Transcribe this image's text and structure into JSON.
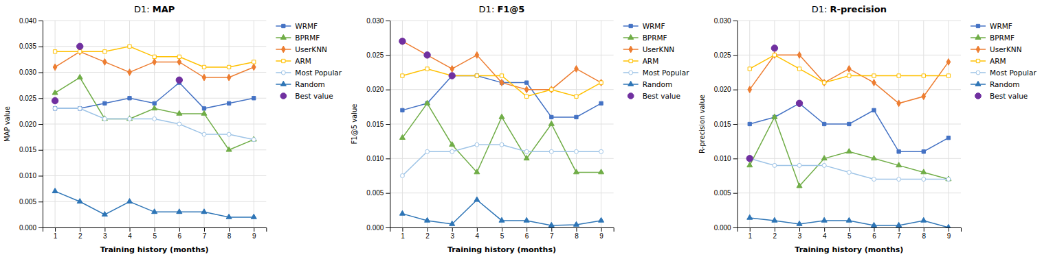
{
  "chart_data": [
    {
      "type": "line",
      "title": "D1: MAP",
      "x_label": "Training history (months)",
      "y_label": "MAP value",
      "x": [
        1,
        2,
        3,
        4,
        5,
        6,
        7,
        8,
        9
      ],
      "xlim": [
        0.5,
        9.5
      ],
      "xticks": [
        1,
        2,
        3,
        4,
        5,
        6,
        7,
        8,
        9
      ],
      "ylim": [
        0,
        0.04
      ],
      "yticks": [
        {
          "value": 0,
          "label": "0.000"
        },
        0.005,
        {
          "value": 0.01,
          "label": "0.010"
        },
        0.015,
        {
          "value": 0.02,
          "label": "0.020"
        },
        0.025,
        {
          "value": 0.03,
          "label": "0.030"
        },
        0.035,
        {
          "value": 0.04,
          "label": "0.040"
        }
      ],
      "grid": true,
      "legend": "right",
      "series": [
        {
          "name": "WRMF",
          "color": "#4472C4",
          "marker": "square",
          "values": [
            0.023,
            0.023,
            0.024,
            0.025,
            0.024,
            0.028,
            0.023,
            0.024,
            0.025
          ]
        },
        {
          "name": "BPRMF",
          "color": "#70AD47",
          "marker": "triangle",
          "values": [
            0.026,
            0.029,
            0.021,
            0.021,
            0.023,
            0.022,
            0.022,
            0.015,
            0.017
          ]
        },
        {
          "name": "UserKNN",
          "color": "#ED7D31",
          "marker": "diamond",
          "values": [
            0.031,
            0.034,
            0.032,
            0.03,
            0.032,
            0.032,
            0.029,
            0.029,
            0.031
          ]
        },
        {
          "name": "ARM",
          "color": "#FFC000",
          "marker": "square-open",
          "values": [
            0.034,
            0.034,
            0.034,
            0.035,
            0.033,
            0.033,
            0.031,
            0.031,
            0.032
          ]
        },
        {
          "name": "Most Popular",
          "color": "#9DC3E6",
          "marker": "circle-open",
          "values": [
            0.023,
            0.023,
            0.021,
            0.021,
            0.021,
            0.02,
            0.018,
            0.018,
            0.017
          ]
        },
        {
          "name": "Random",
          "color": "#2E75B6",
          "marker": "triangle",
          "values": [
            0.007,
            0.005,
            0.0025,
            0.005,
            0.003,
            0.003,
            0.003,
            0.002,
            0.002
          ]
        },
        {
          "name": "Best value",
          "type": "scatter",
          "color": "#7030A0",
          "marker": "circle",
          "x": [
            1,
            2,
            6
          ],
          "values": [
            0.0245,
            0.035,
            0.0285
          ]
        }
      ]
    },
    {
      "type": "line",
      "title": "D1: F1@5",
      "x_label": "Training history (months)",
      "y_label": "F1@5 value",
      "x": [
        1,
        2,
        3,
        4,
        5,
        6,
        7,
        8,
        9
      ],
      "xlim": [
        0.5,
        9.5
      ],
      "xticks": [
        1,
        2,
        3,
        4,
        5,
        6,
        7,
        8,
        9
      ],
      "ylim": [
        0,
        0.03
      ],
      "yticks": [
        {
          "value": 0,
          "label": "0.000"
        },
        0.005,
        {
          "value": 0.01,
          "label": "0.010"
        },
        0.015,
        {
          "value": 0.02,
          "label": "0.020"
        },
        0.025,
        {
          "value": 0.03,
          "label": "0.030"
        }
      ],
      "grid": true,
      "legend": "right",
      "series": [
        {
          "name": "WRMF",
          "color": "#4472C4",
          "marker": "square",
          "values": [
            0.017,
            0.018,
            0.022,
            0.022,
            0.021,
            0.021,
            0.016,
            0.016,
            0.018
          ]
        },
        {
          "name": "BPRMF",
          "color": "#70AD47",
          "marker": "triangle",
          "values": [
            0.013,
            0.018,
            0.012,
            0.008,
            0.016,
            0.01,
            0.015,
            0.008,
            0.008
          ]
        },
        {
          "name": "UserKNN",
          "color": "#ED7D31",
          "marker": "diamond",
          "values": [
            0.027,
            0.025,
            0.023,
            0.025,
            0.021,
            0.02,
            0.02,
            0.023,
            0.021
          ]
        },
        {
          "name": "ARM",
          "color": "#FFC000",
          "marker": "square-open",
          "values": [
            0.022,
            0.023,
            0.022,
            0.022,
            0.022,
            0.019,
            0.02,
            0.019,
            0.021
          ]
        },
        {
          "name": "Most Popular",
          "color": "#9DC3E6",
          "marker": "circle-open",
          "values": [
            0.0075,
            0.011,
            0.011,
            0.012,
            0.012,
            0.011,
            0.011,
            0.011,
            0.011
          ]
        },
        {
          "name": "Random",
          "color": "#2E75B6",
          "marker": "triangle",
          "values": [
            0.002,
            0.001,
            0.0005,
            0.004,
            0.001,
            0.001,
            0.0003,
            0.0004,
            0.001
          ]
        },
        {
          "name": "Best value",
          "type": "scatter",
          "color": "#7030A0",
          "marker": "circle",
          "x": [
            1,
            2,
            3
          ],
          "values": [
            0.027,
            0.025,
            0.022
          ]
        }
      ]
    },
    {
      "type": "line",
      "title": "D1: R-precision",
      "x_label": "Training history (months)",
      "y_label": "R-precision value",
      "x": [
        1,
        2,
        3,
        4,
        5,
        6,
        7,
        8,
        9
      ],
      "xlim": [
        0.5,
        9.5
      ],
      "xticks": [
        1,
        2,
        3,
        4,
        5,
        6,
        7,
        8,
        9
      ],
      "ylim": [
        0,
        0.03
      ],
      "yticks": [
        {
          "value": 0,
          "label": "0.000"
        },
        0.005,
        {
          "value": 0.01,
          "label": "0.010"
        },
        0.015,
        {
          "value": 0.02,
          "label": "0.020"
        },
        0.025,
        {
          "value": 0.03,
          "label": "0.030"
        }
      ],
      "grid": true,
      "legend": "right",
      "series": [
        {
          "name": "WRMF",
          "color": "#4472C4",
          "marker": "square",
          "values": [
            0.015,
            0.016,
            0.018,
            0.015,
            0.015,
            0.017,
            0.011,
            0.011,
            0.013
          ]
        },
        {
          "name": "BPRMF",
          "color": "#70AD47",
          "marker": "triangle",
          "values": [
            0.009,
            0.016,
            0.006,
            0.01,
            0.011,
            0.01,
            0.009,
            0.008,
            0.007
          ]
        },
        {
          "name": "UserKNN",
          "color": "#ED7D31",
          "marker": "diamond",
          "values": [
            0.02,
            0.025,
            0.025,
            0.021,
            0.023,
            0.021,
            0.018,
            0.019,
            0.024
          ]
        },
        {
          "name": "ARM",
          "color": "#FFC000",
          "marker": "square-open",
          "values": [
            0.023,
            0.025,
            0.023,
            0.021,
            0.022,
            0.022,
            0.022,
            0.022,
            0.022
          ]
        },
        {
          "name": "Most Popular",
          "color": "#9DC3E6",
          "marker": "circle-open",
          "values": [
            0.01,
            0.009,
            0.009,
            0.009,
            0.008,
            0.007,
            0.007,
            0.007,
            0.007
          ]
        },
        {
          "name": "Random",
          "color": "#2E75B6",
          "marker": "triangle",
          "values": [
            0.0014,
            0.001,
            0.0005,
            0.001,
            0.001,
            0.0003,
            0.0003,
            0.001,
            0.0
          ]
        },
        {
          "name": "Best value",
          "type": "scatter",
          "color": "#7030A0",
          "marker": "circle",
          "x": [
            1,
            2,
            3
          ],
          "values": [
            0.01,
            0.026,
            0.018
          ]
        }
      ]
    }
  ]
}
